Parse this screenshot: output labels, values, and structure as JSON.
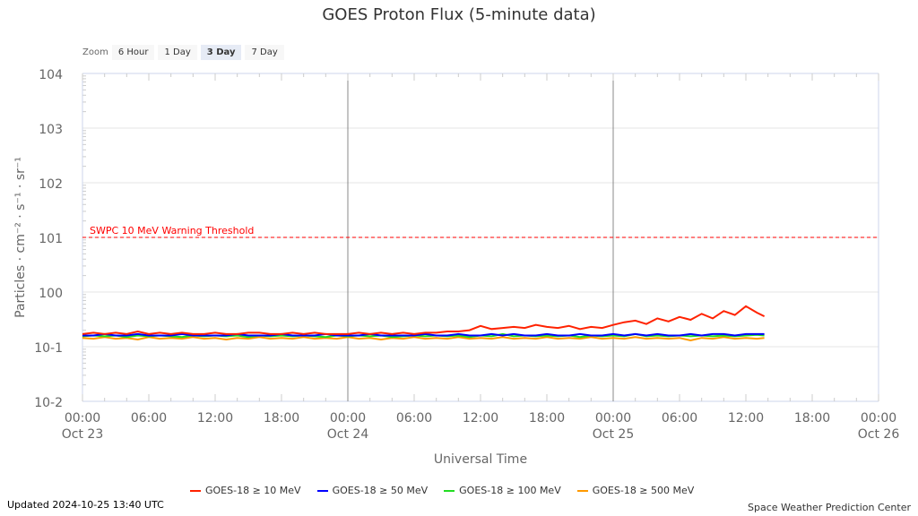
{
  "title": "GOES Proton Flux (5-minute data)",
  "zoom": {
    "label": "Zoom",
    "buttons": [
      "6 Hour",
      "1 Day",
      "3 Day",
      "7 Day"
    ],
    "selected": "3 Day"
  },
  "updated": "Updated 2024-10-25 13:40 UTC",
  "credit": "Space Weather Prediction Center",
  "chart_data": {
    "type": "line",
    "title": "GOES Proton Flux (5-minute data)",
    "xlabel": "Universal Time",
    "ylabel": "Particles · cm⁻² · s⁻¹ · sr⁻¹",
    "yscale": "log",
    "ylim": [
      0.01,
      10000
    ],
    "y_tick_labels": [
      "104",
      "103",
      "102",
      "101",
      "100",
      "10-1",
      "10-2"
    ],
    "x_unit": "hours since Oct 23 00:00 UTC",
    "xlim": [
      0,
      72
    ],
    "x_tick_labels": [
      [
        "00:00",
        "Oct 23"
      ],
      [
        "06:00",
        ""
      ],
      [
        "12:00",
        ""
      ],
      [
        "18:00",
        ""
      ],
      [
        "00:00",
        "Oct 24"
      ],
      [
        "06:00",
        ""
      ],
      [
        "12:00",
        ""
      ],
      [
        "18:00",
        ""
      ],
      [
        "00:00",
        "Oct 25"
      ],
      [
        "06:00",
        ""
      ],
      [
        "12:00",
        ""
      ],
      [
        "18:00",
        ""
      ],
      [
        "00:00",
        "Oct 26"
      ]
    ],
    "threshold": {
      "label": "SWPC 10 MeV Warning Threshold",
      "value": 10,
      "color": "#ff0000"
    },
    "legend_position": "bottom",
    "series": [
      {
        "name": "GOES-18 ≥ 10 MeV",
        "color": "#ff2200",
        "values": [
          0.17,
          0.18,
          0.17,
          0.18,
          0.17,
          0.19,
          0.17,
          0.18,
          0.17,
          0.18,
          0.17,
          0.17,
          0.18,
          0.17,
          0.17,
          0.18,
          0.18,
          0.17,
          0.17,
          0.18,
          0.17,
          0.18,
          0.17,
          0.17,
          0.17,
          0.18,
          0.17,
          0.18,
          0.17,
          0.18,
          0.17,
          0.18,
          0.18,
          0.19,
          0.19,
          0.2,
          0.24,
          0.21,
          0.22,
          0.23,
          0.22,
          0.25,
          0.23,
          0.22,
          0.24,
          0.21,
          0.23,
          0.22,
          0.25,
          0.28,
          0.3,
          0.26,
          0.33,
          0.29,
          0.35,
          0.31,
          0.4,
          0.33,
          0.45,
          0.38,
          0.55,
          0.42,
          0.36
        ]
      },
      {
        "name": "GOES-18 ≥ 50 MeV",
        "color": "#0000ff",
        "values": [
          0.16,
          0.16,
          0.17,
          0.16,
          0.16,
          0.17,
          0.16,
          0.16,
          0.16,
          0.17,
          0.16,
          0.16,
          0.16,
          0.16,
          0.17,
          0.16,
          0.16,
          0.16,
          0.17,
          0.16,
          0.16,
          0.16,
          0.17,
          0.16,
          0.16,
          0.16,
          0.17,
          0.16,
          0.16,
          0.16,
          0.16,
          0.17,
          0.16,
          0.16,
          0.17,
          0.16,
          0.16,
          0.17,
          0.16,
          0.17,
          0.16,
          0.16,
          0.17,
          0.16,
          0.16,
          0.17,
          0.16,
          0.16,
          0.17,
          0.16,
          0.17,
          0.16,
          0.17,
          0.16,
          0.16,
          0.17,
          0.16,
          0.17,
          0.17,
          0.16,
          0.17,
          0.17,
          0.17
        ]
      },
      {
        "name": "GOES-18 ≥ 100 MeV",
        "color": "#22dd22",
        "values": [
          0.155,
          0.16,
          0.155,
          0.16,
          0.15,
          0.16,
          0.155,
          0.16,
          0.155,
          0.15,
          0.16,
          0.155,
          0.16,
          0.155,
          0.16,
          0.15,
          0.16,
          0.155,
          0.16,
          0.155,
          0.16,
          0.155,
          0.15,
          0.16,
          0.155,
          0.16,
          0.155,
          0.16,
          0.15,
          0.155,
          0.16,
          0.155,
          0.16,
          0.155,
          0.16,
          0.15,
          0.16,
          0.155,
          0.17,
          0.155,
          0.16,
          0.155,
          0.16,
          0.155,
          0.16,
          0.15,
          0.16,
          0.155,
          0.16,
          0.155,
          0.17,
          0.155,
          0.16,
          0.155,
          0.16,
          0.155,
          0.16,
          0.155,
          0.16,
          0.155,
          0.16,
          0.165,
          0.16
        ]
      },
      {
        "name": "GOES-18 ≥ 500 MeV",
        "color": "#ff9900",
        "values": [
          0.145,
          0.14,
          0.15,
          0.14,
          0.145,
          0.135,
          0.15,
          0.14,
          0.145,
          0.14,
          0.15,
          0.14,
          0.145,
          0.135,
          0.145,
          0.14,
          0.15,
          0.14,
          0.145,
          0.14,
          0.15,
          0.14,
          0.145,
          0.14,
          0.15,
          0.14,
          0.145,
          0.135,
          0.145,
          0.14,
          0.15,
          0.14,
          0.145,
          0.14,
          0.15,
          0.14,
          0.145,
          0.14,
          0.15,
          0.14,
          0.145,
          0.14,
          0.15,
          0.14,
          0.145,
          0.14,
          0.15,
          0.14,
          0.145,
          0.14,
          0.15,
          0.14,
          0.145,
          0.14,
          0.145,
          0.13,
          0.145,
          0.14,
          0.15,
          0.14,
          0.145,
          0.14,
          0.145
        ]
      }
    ],
    "x_hours": [
      0,
      1,
      2,
      3,
      4,
      5,
      6,
      7,
      8,
      9,
      10,
      11,
      12,
      13,
      14,
      15,
      16,
      17,
      18,
      19,
      20,
      21,
      22,
      23,
      24,
      25,
      26,
      27,
      28,
      29,
      30,
      31,
      32,
      33,
      34,
      35,
      36,
      37,
      38,
      39,
      40,
      41,
      42,
      43,
      44,
      45,
      46,
      47,
      48,
      49,
      50,
      51,
      52,
      53,
      54,
      55,
      56,
      57,
      58,
      59,
      60,
      61,
      61.67
    ]
  }
}
